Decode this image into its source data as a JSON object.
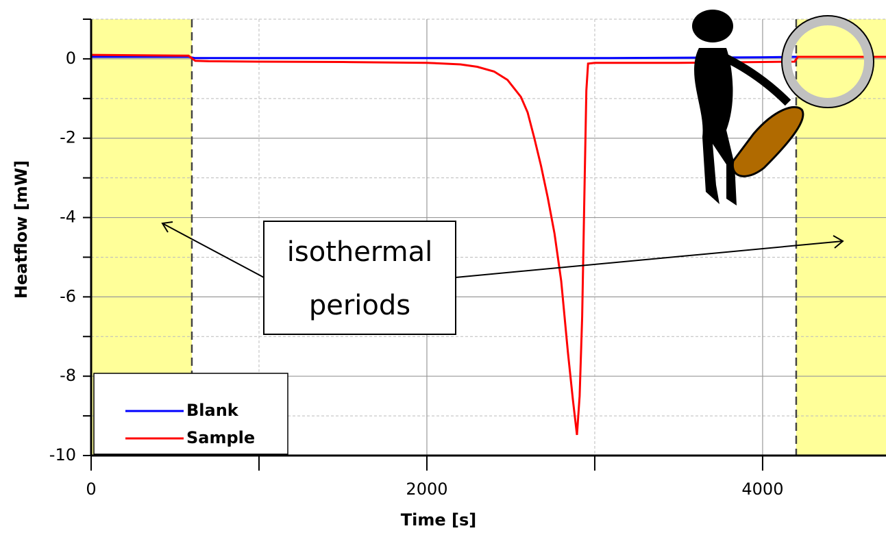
{
  "chart_data": {
    "type": "line",
    "xlabel": "Time [s]",
    "ylabel": "Heatflow [mW]",
    "x": [
      0,
      580,
      620,
      700,
      1000,
      1500,
      2000,
      2200,
      2300,
      2400,
      2480,
      2560,
      2600,
      2640,
      2680,
      2720,
      2760,
      2800,
      2840,
      2870,
      2894,
      2910,
      2925,
      2940,
      2950,
      2960,
      3000,
      3500,
      4000,
      4190,
      4210,
      4735
    ],
    "series": [
      {
        "name": "Blank",
        "color": "#0000ff",
        "values": [
          0.05,
          0.05,
          0.02,
          0.02,
          0.02,
          0.02,
          0.02,
          0.02,
          0.02,
          0.02,
          0.02,
          0.02,
          0.02,
          0.02,
          0.02,
          0.02,
          0.02,
          0.02,
          0.02,
          0.02,
          0.02,
          0.02,
          0.02,
          0.02,
          0.02,
          0.02,
          0.02,
          0.03,
          0.04,
          0.05,
          0.05,
          0.05
        ]
      },
      {
        "name": "Sample",
        "color": "#ff0000",
        "values": [
          0.1,
          0.08,
          -0.05,
          -0.06,
          -0.07,
          -0.08,
          -0.1,
          -0.14,
          -0.2,
          -0.32,
          -0.53,
          -0.96,
          -1.35,
          -2.0,
          -2.7,
          -3.5,
          -4.4,
          -5.6,
          -7.4,
          -8.6,
          -9.48,
          -8.5,
          -6.5,
          -3.0,
          -0.8,
          -0.12,
          -0.1,
          -0.1,
          -0.08,
          -0.07,
          0.05,
          0.05
        ]
      }
    ],
    "xlim": [
      0,
      4735
    ],
    "ylim": [
      -10,
      1
    ],
    "xticks": [
      0,
      2000,
      4000
    ],
    "xminor_ticks": [
      1000,
      3000
    ],
    "yticks": [
      0,
      -2,
      -4,
      -6,
      -8,
      -10
    ],
    "yminor_ticks": [
      1,
      -1,
      -3,
      -5,
      -7,
      -9
    ],
    "grid": true,
    "legend": "lower left",
    "shaded_regions": [
      {
        "x": [
          0,
          600
        ],
        "color": "#ffff99"
      },
      {
        "x": [
          4200,
          4735
        ],
        "color": "#ffff99"
      }
    ],
    "annotation": [
      "isothermal",
      "periods"
    ]
  }
}
